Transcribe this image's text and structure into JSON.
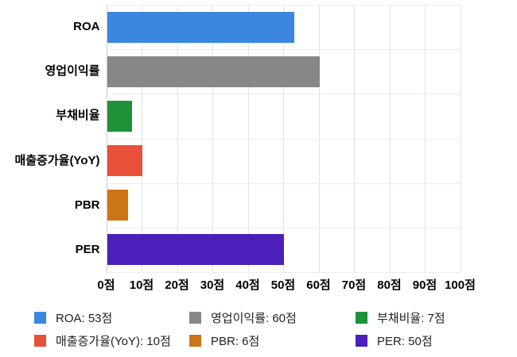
{
  "chart_data": {
    "type": "bar",
    "orientation": "horizontal",
    "title": "",
    "xlabel": "",
    "ylabel": "",
    "unit": "점",
    "categories": [
      "ROA",
      "영업이익률",
      "부채비율",
      "매출증가율(YoY)",
      "PBR",
      "PER"
    ],
    "values": [
      53,
      60,
      7,
      10,
      6,
      50
    ],
    "colors": [
      "#3b87e0",
      "#878787",
      "#1f9138",
      "#e8503a",
      "#cc7517",
      "#4c1fba"
    ],
    "xlim": [
      0,
      100
    ],
    "x_tick_step": 10,
    "x_tick_labels": [
      "0점",
      "10점",
      "20점",
      "30점",
      "40점",
      "50점",
      "60점",
      "70점",
      "80점",
      "90점",
      "100점"
    ],
    "grid": true,
    "background": "#ffffff",
    "legend_position": "bottom",
    "legend": [
      {
        "label": "ROA: 53점",
        "color": "#3b87e0"
      },
      {
        "label": "영업이익률: 60점",
        "color": "#878787"
      },
      {
        "label": "부채비율: 7점",
        "color": "#1f9138"
      },
      {
        "label": "매출증가율(YoY): 10점",
        "color": "#e8503a"
      },
      {
        "label": "PBR: 6점",
        "color": "#cc7517"
      },
      {
        "label": "PER: 50점",
        "color": "#4c1fba"
      }
    ]
  }
}
